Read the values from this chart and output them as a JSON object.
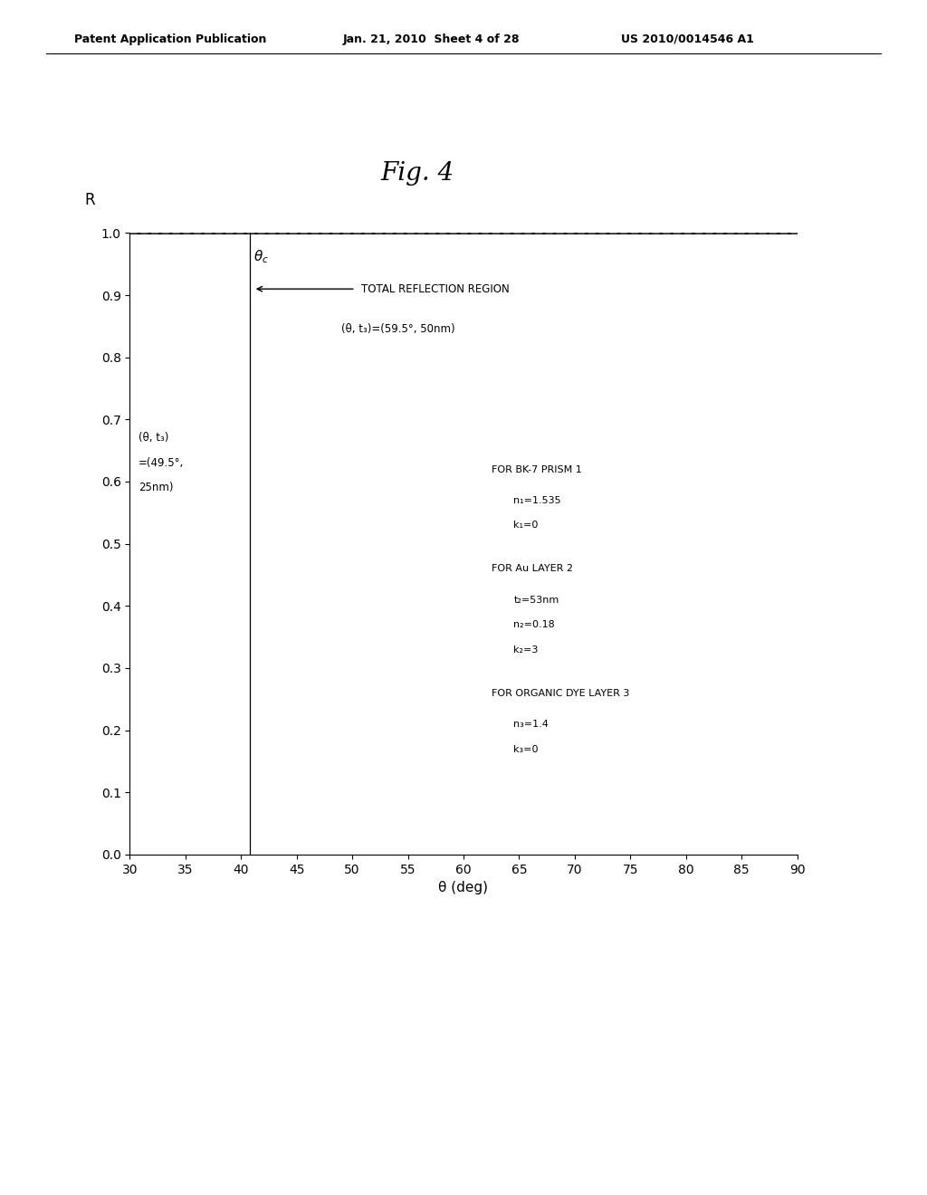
{
  "title": "Fig. 4",
  "xlabel": "θ (deg)",
  "ylabel": "R",
  "xlim": [
    30,
    90
  ],
  "ylim": [
    0,
    1.0
  ],
  "xticks": [
    30,
    35,
    40,
    45,
    50,
    55,
    60,
    65,
    70,
    75,
    80,
    85,
    90
  ],
  "yticks": [
    0,
    0.1,
    0.2,
    0.3,
    0.4,
    0.5,
    0.6,
    0.7,
    0.8,
    0.9,
    1.0
  ],
  "theta_c": 40.8,
  "header_left": "Patent Application Publication",
  "header_mid": "Jan. 21, 2010  Sheet 4 of 28",
  "header_right": "US 2010/0014546 A1",
  "annotation_total_reflection": "TOTAL REFLECTION REGION",
  "annotation_curve1": "(θ, t₃)=(59.5°, 50nm)",
  "annotation_curve2_line1": "(θ, t₃)",
  "annotation_curve2_line2": "=(49.5°,",
  "annotation_curve2_line3": "25nm)",
  "legend_bk7": "FOR BK-7 PRISM 1",
  "legend_bk7_n1": "n₁=1.535",
  "legend_bk7_k1": "k₁=0",
  "legend_au": "FOR Au LAYER 2",
  "legend_au_t2": "t₂=53nm",
  "legend_au_n2": "n₂=0.18",
  "legend_au_k2": "k₂=3",
  "legend_org": "FOR ORGANIC DYE LAYER 3",
  "legend_org_n3": "n₃=1.4",
  "legend_org_k3": "k₃=0",
  "background_color": "#ffffff",
  "line_color_solid": "#000000",
  "line_color_dashed": "#555555",
  "n1": 1.535,
  "k1": 0,
  "n2": 0.18,
  "k2": 3,
  "t2": 53,
  "n3": 1.4,
  "k3": 0,
  "t3_solid": 50,
  "t3_dashed": 25,
  "wavelength": 632.8
}
